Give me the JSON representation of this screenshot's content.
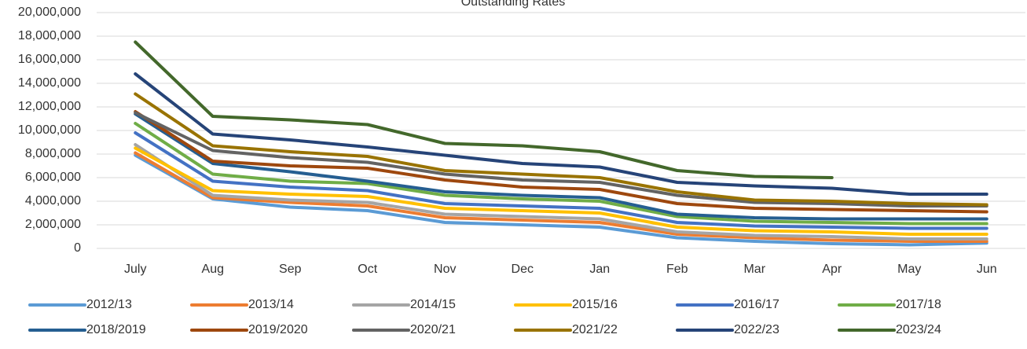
{
  "chart_data": {
    "type": "line",
    "title": "Outstanding Rates",
    "categories": [
      "July",
      "Aug",
      "Sep",
      "Oct",
      "Nov",
      "Dec",
      "Jan",
      "Feb",
      "Mar",
      "Apr",
      "May",
      "Jun"
    ],
    "ylim": [
      0,
      20000000
    ],
    "yticks": [
      0,
      {
        "value": 2000000,
        "label": "2,000,000"
      },
      {
        "value": 4000000,
        "label": "4,000,000"
      },
      {
        "value": 6000000,
        "label": "6,000,000"
      },
      {
        "value": 8000000,
        "label": "8,000,000"
      },
      {
        "value": 10000000,
        "label": "10,000,000"
      },
      {
        "value": 12000000,
        "label": "12,000,000"
      },
      {
        "value": 14000000,
        "label": "14,000,000"
      },
      {
        "value": 16000000,
        "label": "16,000,000"
      },
      {
        "value": 18000000,
        "label": "18,000,000"
      },
      {
        "value": 20000000,
        "label": "20,000,000"
      }
    ],
    "grid": true,
    "legend": "bottom",
    "series": [
      {
        "name": "2012/13",
        "color": "#5b9bd5",
        "values": [
          7900000,
          4200000,
          3500000,
          3200000,
          2200000,
          2000000,
          1800000,
          900000,
          600000,
          400000,
          300000,
          450000
        ]
      },
      {
        "name": "2013/14",
        "color": "#ed7d31",
        "values": [
          8100000,
          4300000,
          3900000,
          3600000,
          2600000,
          2400000,
          2200000,
          1200000,
          900000,
          700000,
          600000,
          600000
        ]
      },
      {
        "name": "2014/15",
        "color": "#a5a5a5",
        "values": [
          8800000,
          4500000,
          4100000,
          3900000,
          2900000,
          2700000,
          2500000,
          1400000,
          1100000,
          1000000,
          800000,
          800000
        ]
      },
      {
        "name": "2015/16",
        "color": "#ffc000",
        "values": [
          8500000,
          4900000,
          4600000,
          4400000,
          3400000,
          3200000,
          3000000,
          1800000,
          1500000,
          1400000,
          1200000,
          1200000
        ]
      },
      {
        "name": "2016/17",
        "color": "#4472c4",
        "values": [
          9800000,
          5700000,
          5200000,
          4900000,
          3800000,
          3600000,
          3400000,
          2200000,
          1900000,
          1800000,
          1700000,
          1700000
        ]
      },
      {
        "name": "2017/18",
        "color": "#70ad47",
        "values": [
          10600000,
          6300000,
          5700000,
          5500000,
          4500000,
          4200000,
          4000000,
          2700000,
          2300000,
          2200000,
          2100000,
          2100000
        ]
      },
      {
        "name": "2018/2019",
        "color": "#255e91",
        "values": [
          11400000,
          7200000,
          6500000,
          5700000,
          4800000,
          4500000,
          4300000,
          2900000,
          2600000,
          2500000,
          2500000,
          2500000
        ]
      },
      {
        "name": "2019/2020",
        "color": "#9e480e",
        "values": [
          11600000,
          7400000,
          7000000,
          6800000,
          5800000,
          5200000,
          5000000,
          3800000,
          3400000,
          3300000,
          3200000,
          3100000
        ]
      },
      {
        "name": "2020/21",
        "color": "#636363",
        "values": [
          11500000,
          8300000,
          7700000,
          7300000,
          6300000,
          5800000,
          5600000,
          4500000,
          3900000,
          3800000,
          3600000,
          3600000
        ]
      },
      {
        "name": "2021/22",
        "color": "#997300",
        "values": [
          13100000,
          8700000,
          8200000,
          7800000,
          6600000,
          6300000,
          6000000,
          4800000,
          4100000,
          4000000,
          3800000,
          3700000
        ]
      },
      {
        "name": "2022/23",
        "color": "#264478",
        "values": [
          14800000,
          9700000,
          9200000,
          8600000,
          7900000,
          7200000,
          6900000,
          5600000,
          5300000,
          5100000,
          4600000,
          4600000
        ]
      },
      {
        "name": "2023/24",
        "color": "#43682b",
        "values": [
          17500000,
          11200000,
          10900000,
          10500000,
          8900000,
          8700000,
          8200000,
          6600000,
          6100000,
          6000000,
          null,
          null
        ]
      }
    ]
  }
}
